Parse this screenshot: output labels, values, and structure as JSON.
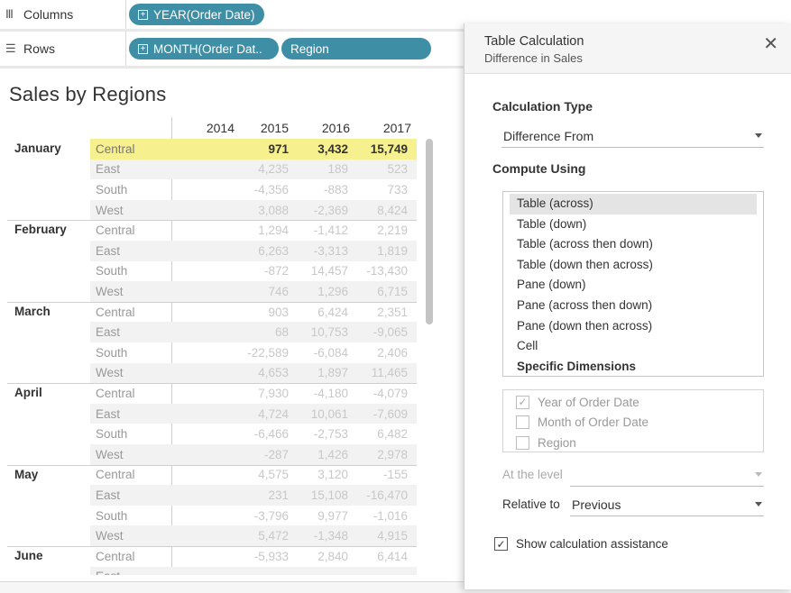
{
  "shelves": {
    "columns": {
      "label": "Columns",
      "icon": "columns-icon",
      "pills": [
        "YEAR(Order Date)"
      ]
    },
    "rows": {
      "label": "Rows",
      "icon": "rows-icon",
      "pills": [
        "MONTH(Order Dat..",
        "Region"
      ]
    }
  },
  "view": {
    "title": "Sales by Regions",
    "years": [
      "2014",
      "2015",
      "2016",
      "2017"
    ],
    "months": [
      {
        "name": "January",
        "rows": [
          {
            "region": "Central",
            "v2015": "971",
            "v2016": "3,432",
            "v2017": "15,749"
          },
          {
            "region": "East",
            "v2015": "4,235",
            "v2016": "189",
            "v2017": "523"
          },
          {
            "region": "South",
            "v2015": "-4,356",
            "v2016": "-883",
            "v2017": "733"
          },
          {
            "region": "West",
            "v2015": "3,088",
            "v2016": "-2,369",
            "v2017": "8,424"
          }
        ]
      },
      {
        "name": "February",
        "rows": [
          {
            "region": "Central",
            "v2015": "1,294",
            "v2016": "-1,412",
            "v2017": "2,219"
          },
          {
            "region": "East",
            "v2015": "6,263",
            "v2016": "-3,313",
            "v2017": "1,819"
          },
          {
            "region": "South",
            "v2015": "-872",
            "v2016": "14,457",
            "v2017": "-13,430"
          },
          {
            "region": "West",
            "v2015": "746",
            "v2016": "1,296",
            "v2017": "6,715"
          }
        ]
      },
      {
        "name": "March",
        "rows": [
          {
            "region": "Central",
            "v2015": "903",
            "v2016": "6,424",
            "v2017": "2,351"
          },
          {
            "region": "East",
            "v2015": "68",
            "v2016": "10,753",
            "v2017": "-9,065"
          },
          {
            "region": "South",
            "v2015": "-22,589",
            "v2016": "-6,084",
            "v2017": "2,406"
          },
          {
            "region": "West",
            "v2015": "4,653",
            "v2016": "1,897",
            "v2017": "11,465"
          }
        ]
      },
      {
        "name": "April",
        "rows": [
          {
            "region": "Central",
            "v2015": "7,930",
            "v2016": "-4,180",
            "v2017": "-4,079"
          },
          {
            "region": "East",
            "v2015": "4,724",
            "v2016": "10,061",
            "v2017": "-7,609"
          },
          {
            "region": "South",
            "v2015": "-6,466",
            "v2016": "-2,753",
            "v2017": "6,482"
          },
          {
            "region": "West",
            "v2015": "-287",
            "v2016": "1,426",
            "v2017": "2,978"
          }
        ]
      },
      {
        "name": "May",
        "rows": [
          {
            "region": "Central",
            "v2015": "4,575",
            "v2016": "3,120",
            "v2017": "-155"
          },
          {
            "region": "East",
            "v2015": "231",
            "v2016": "15,108",
            "v2017": "-16,470"
          },
          {
            "region": "South",
            "v2015": "-3,796",
            "v2016": "9,977",
            "v2017": "-1,016"
          },
          {
            "region": "West",
            "v2015": "5,472",
            "v2016": "-1,348",
            "v2017": "4,915"
          }
        ]
      },
      {
        "name": "June",
        "rows": [
          {
            "region": "Central",
            "v2015": "-5,933",
            "v2016": "2,840",
            "v2017": "6,414"
          },
          {
            "region": "East",
            "v2015": "",
            "v2016": "",
            "v2017": ""
          }
        ]
      }
    ]
  },
  "dialog": {
    "title": "Table Calculation",
    "subtitle": "Difference in Sales",
    "calc_type_label": "Calculation Type",
    "calc_type_value": "Difference From",
    "compute_using_label": "Compute Using",
    "compute_options": [
      "Table (across)",
      "Table (down)",
      "Table (across then down)",
      "Table (down then across)",
      "Pane (down)",
      "Pane (across then down)",
      "Pane (down then across)",
      "Cell",
      "Specific Dimensions"
    ],
    "dimensions": [
      {
        "label": "Year of Order Date",
        "checked": true
      },
      {
        "label": "Month of Order Date",
        "checked": false
      },
      {
        "label": "Region",
        "checked": false
      }
    ],
    "at_level_label": "At the level",
    "at_level_value": "",
    "relative_to_label": "Relative to",
    "relative_to_value": "Previous",
    "show_assist_label": "Show calculation assistance",
    "show_assist_checked": true
  }
}
